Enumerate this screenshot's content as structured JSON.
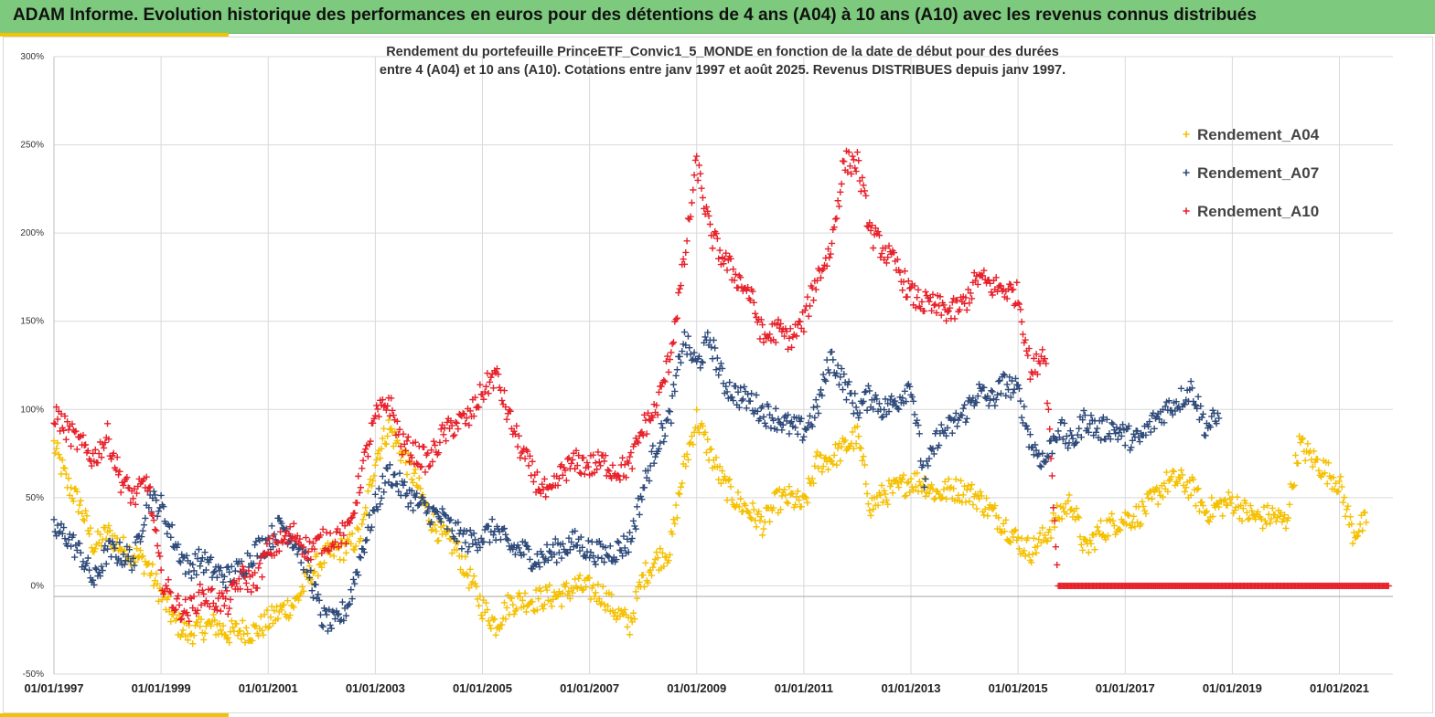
{
  "banner": {
    "title": "ADAM Informe. Evolution historique des performances en euros pour des détentions de 4 ans (A04) à 10 ans (A10) avec les revenus connus distribués",
    "color": "#7dc97d",
    "accent_color": "#f2c300"
  },
  "chart_data": {
    "type": "scatter",
    "subtitle_lines": [
      "Rendement du portefeuille PrinceETF_Convic1_5_MONDE  en fonction de la date de début pour des durées",
      "entre 4 (A04) et 10 ans (A10). Cotations entre janv 1997 et août 2025. Revenus DISTRIBUES depuis janv 1997."
    ],
    "xlabel": "",
    "ylabel": "",
    "x_ticks": [
      "01/01/1997",
      "01/01/1999",
      "01/01/2001",
      "01/01/2003",
      "01/01/2005",
      "01/01/2007",
      "01/01/2009",
      "01/01/2011",
      "01/01/2013",
      "01/01/2015",
      "01/01/2017",
      "01/01/2019",
      "01/01/2021"
    ],
    "y_ticks": [
      "-50%",
      "0%",
      "50%",
      "100%",
      "150%",
      "200%",
      "250%",
      "300%"
    ],
    "xlim": [
      "1997-01-01",
      "2021-12-31"
    ],
    "ylim": [
      -50,
      300
    ],
    "grid": true,
    "legend_position": "top-right",
    "marker": "+",
    "series": [
      {
        "name": "Rendement_A04",
        "color": "#f5c000",
        "points": [
          [
            "1997-01",
            80
          ],
          [
            "1997-04",
            58
          ],
          [
            "1997-07",
            45
          ],
          [
            "1997-10",
            22
          ],
          [
            "1998-01",
            30
          ],
          [
            "1998-04",
            22
          ],
          [
            "1998-07",
            18
          ],
          [
            "1998-10",
            12
          ],
          [
            "1999-01",
            -5
          ],
          [
            "1999-04",
            -20
          ],
          [
            "1999-07",
            -27
          ],
          [
            "1999-10",
            -24
          ],
          [
            "2000-01",
            -22
          ],
          [
            "2000-04",
            -27
          ],
          [
            "2000-07",
            -25
          ],
          [
            "2000-10",
            -26
          ],
          [
            "2001-01",
            -20
          ],
          [
            "2001-04",
            -14
          ],
          [
            "2001-07",
            -10
          ],
          [
            "2001-10",
            5
          ],
          [
            "2002-01",
            15
          ],
          [
            "2002-04",
            20
          ],
          [
            "2002-07",
            22
          ],
          [
            "2002-10",
            30
          ],
          [
            "2003-01",
            72
          ],
          [
            "2003-04",
            90
          ],
          [
            "2003-07",
            75
          ],
          [
            "2003-10",
            60
          ],
          [
            "2004-01",
            40
          ],
          [
            "2004-04",
            28
          ],
          [
            "2004-07",
            22
          ],
          [
            "2004-10",
            5
          ],
          [
            "2005-01",
            -12
          ],
          [
            "2005-04",
            -22
          ],
          [
            "2005-07",
            -10
          ],
          [
            "2005-10",
            -8
          ],
          [
            "2006-01",
            -8
          ],
          [
            "2006-04",
            -6
          ],
          [
            "2006-07",
            -5
          ],
          [
            "2006-10",
            0
          ],
          [
            "2007-01",
            -2
          ],
          [
            "2007-04",
            -5
          ],
          [
            "2007-07",
            -15
          ],
          [
            "2007-10",
            -22
          ],
          [
            "2008-01",
            5
          ],
          [
            "2008-04",
            15
          ],
          [
            "2008-07",
            20
          ],
          [
            "2008-10",
            65
          ],
          [
            "2009-01",
            95
          ],
          [
            "2009-04",
            75
          ],
          [
            "2009-07",
            58
          ],
          [
            "2009-10",
            48
          ],
          [
            "2010-01",
            42
          ],
          [
            "2010-04",
            35
          ],
          [
            "2010-07",
            48
          ],
          [
            "2010-10",
            50
          ],
          [
            "2011-01",
            45
          ],
          [
            "2011-04",
            70
          ],
          [
            "2011-07",
            72
          ],
          [
            "2011-10",
            78
          ],
          [
            "2012-01",
            85
          ],
          [
            "2012-04",
            45
          ],
          [
            "2012-07",
            52
          ],
          [
            "2012-10",
            55
          ],
          [
            "2013-01",
            60
          ],
          [
            "2013-04",
            58
          ],
          [
            "2013-07",
            52
          ],
          [
            "2013-10",
            55
          ],
          [
            "2014-01",
            54
          ],
          [
            "2014-04",
            50
          ],
          [
            "2014-07",
            42
          ],
          [
            "2014-10",
            35
          ],
          [
            "2015-01",
            25
          ],
          [
            "2015-04",
            20
          ],
          [
            "2015-07",
            28
          ],
          [
            "2015-10",
            40
          ],
          [
            "2016-01",
            48
          ],
          [
            "2016-04",
            20
          ],
          [
            "2016-07",
            30
          ],
          [
            "2016-10",
            35
          ],
          [
            "2017-01",
            38
          ],
          [
            "2017-04",
            40
          ],
          [
            "2017-07",
            48
          ],
          [
            "2017-10",
            58
          ],
          [
            "2018-01",
            60
          ],
          [
            "2018-04",
            55
          ],
          [
            "2018-07",
            42
          ],
          [
            "2018-10",
            45
          ],
          [
            "2019-01",
            48
          ],
          [
            "2019-04",
            42
          ],
          [
            "2019-07",
            38
          ],
          [
            "2019-10",
            40
          ],
          [
            "2020-01",
            36
          ],
          [
            "2020-04",
            80
          ],
          [
            "2020-07",
            72
          ],
          [
            "2020-10",
            65
          ],
          [
            "2021-01",
            58
          ],
          [
            "2021-04",
            30
          ],
          [
            "2021-07",
            36
          ]
        ]
      },
      {
        "name": "Rendement_A07",
        "color": "#2e4a7a",
        "points": [
          [
            "1997-01",
            32
          ],
          [
            "1997-04",
            28
          ],
          [
            "1997-07",
            18
          ],
          [
            "1997-10",
            2
          ],
          [
            "1998-01",
            20
          ],
          [
            "1998-04",
            18
          ],
          [
            "1998-07",
            15
          ],
          [
            "1998-10",
            50
          ],
          [
            "1999-01",
            45
          ],
          [
            "1999-04",
            25
          ],
          [
            "1999-07",
            10
          ],
          [
            "1999-10",
            15
          ],
          [
            "2000-01",
            8
          ],
          [
            "2000-04",
            5
          ],
          [
            "2000-07",
            10
          ],
          [
            "2000-10",
            20
          ],
          [
            "2001-01",
            25
          ],
          [
            "2001-04",
            35
          ],
          [
            "2001-07",
            25
          ],
          [
            "2001-10",
            10
          ],
          [
            "2002-01",
            -18
          ],
          [
            "2002-04",
            -22
          ],
          [
            "2002-07",
            -10
          ],
          [
            "2002-10",
            20
          ],
          [
            "2003-01",
            45
          ],
          [
            "2003-04",
            65
          ],
          [
            "2003-07",
            55
          ],
          [
            "2003-10",
            48
          ],
          [
            "2004-01",
            42
          ],
          [
            "2004-04",
            38
          ],
          [
            "2004-07",
            30
          ],
          [
            "2004-10",
            25
          ],
          [
            "2005-01",
            28
          ],
          [
            "2005-04",
            32
          ],
          [
            "2005-07",
            22
          ],
          [
            "2005-10",
            20
          ],
          [
            "2006-01",
            15
          ],
          [
            "2006-04",
            18
          ],
          [
            "2006-07",
            22
          ],
          [
            "2006-10",
            25
          ],
          [
            "2007-01",
            20
          ],
          [
            "2007-04",
            18
          ],
          [
            "2007-07",
            20
          ],
          [
            "2007-10",
            25
          ],
          [
            "2008-01",
            55
          ],
          [
            "2008-04",
            80
          ],
          [
            "2008-07",
            95
          ],
          [
            "2008-10",
            140
          ],
          [
            "2009-01",
            125
          ],
          [
            "2009-04",
            140
          ],
          [
            "2009-07",
            115
          ],
          [
            "2009-10",
            108
          ],
          [
            "2010-01",
            105
          ],
          [
            "2010-04",
            98
          ],
          [
            "2010-07",
            95
          ],
          [
            "2010-10",
            90
          ],
          [
            "2011-01",
            88
          ],
          [
            "2011-04",
            100
          ],
          [
            "2011-07",
            130
          ],
          [
            "2011-10",
            115
          ],
          [
            "2012-01",
            100
          ],
          [
            "2012-04",
            108
          ],
          [
            "2012-07",
            100
          ],
          [
            "2012-10",
            105
          ],
          [
            "2013-01",
            115
          ],
          [
            "2013-04",
            60
          ],
          [
            "2013-07",
            85
          ],
          [
            "2013-10",
            90
          ],
          [
            "2014-01",
            98
          ],
          [
            "2014-04",
            110
          ],
          [
            "2014-07",
            105
          ],
          [
            "2014-10",
            115
          ],
          [
            "2015-01",
            110
          ],
          [
            "2015-04",
            80
          ],
          [
            "2015-07",
            70
          ],
          [
            "2015-10",
            90
          ],
          [
            "2016-01",
            80
          ],
          [
            "2016-04",
            95
          ],
          [
            "2016-07",
            88
          ],
          [
            "2016-10",
            90
          ],
          [
            "2017-01",
            85
          ],
          [
            "2017-04",
            82
          ],
          [
            "2017-07",
            92
          ],
          [
            "2017-10",
            100
          ],
          [
            "2018-01",
            105
          ],
          [
            "2018-04",
            112
          ],
          [
            "2018-07",
            90
          ],
          [
            "2018-10",
            95
          ]
        ]
      },
      {
        "name": "Rendement_A10",
        "color": "#e8202a",
        "points": [
          [
            "1997-01",
            98
          ],
          [
            "1997-04",
            88
          ],
          [
            "1997-07",
            80
          ],
          [
            "1997-10",
            72
          ],
          [
            "1998-01",
            85
          ],
          [
            "1998-04",
            60
          ],
          [
            "1998-07",
            50
          ],
          [
            "1998-10",
            60
          ],
          [
            "1999-01",
            5
          ],
          [
            "1999-04",
            -10
          ],
          [
            "1999-07",
            -15
          ],
          [
            "1999-10",
            -5
          ],
          [
            "2000-01",
            -8
          ],
          [
            "2000-04",
            -10
          ],
          [
            "2000-07",
            5
          ],
          [
            "2000-10",
            2
          ],
          [
            "2001-01",
            20
          ],
          [
            "2001-04",
            25
          ],
          [
            "2001-07",
            30
          ],
          [
            "2001-10",
            20
          ],
          [
            "2002-01",
            25
          ],
          [
            "2002-04",
            28
          ],
          [
            "2002-07",
            30
          ],
          [
            "2002-10",
            65
          ],
          [
            "2003-01",
            95
          ],
          [
            "2003-04",
            105
          ],
          [
            "2003-07",
            80
          ],
          [
            "2003-10",
            75
          ],
          [
            "2004-01",
            70
          ],
          [
            "2004-04",
            85
          ],
          [
            "2004-07",
            92
          ],
          [
            "2004-10",
            95
          ],
          [
            "2005-01",
            110
          ],
          [
            "2005-04",
            120
          ],
          [
            "2005-07",
            95
          ],
          [
            "2005-10",
            75
          ],
          [
            "2006-01",
            60
          ],
          [
            "2006-04",
            50
          ],
          [
            "2006-07",
            65
          ],
          [
            "2006-10",
            70
          ],
          [
            "2007-01",
            68
          ],
          [
            "2007-04",
            70
          ],
          [
            "2007-07",
            65
          ],
          [
            "2007-10",
            68
          ],
          [
            "2008-01",
            90
          ],
          [
            "2008-04",
            100
          ],
          [
            "2008-07",
            130
          ],
          [
            "2008-10",
            180
          ],
          [
            "2009-01",
            240
          ],
          [
            "2009-04",
            200
          ],
          [
            "2009-07",
            185
          ],
          [
            "2009-10",
            175
          ],
          [
            "2010-01",
            165
          ],
          [
            "2010-04",
            140
          ],
          [
            "2010-07",
            145
          ],
          [
            "2010-10",
            140
          ],
          [
            "2011-01",
            150
          ],
          [
            "2011-04",
            175
          ],
          [
            "2011-07",
            190
          ],
          [
            "2011-10",
            240
          ],
          [
            "2012-01",
            240
          ],
          [
            "2012-04",
            200
          ],
          [
            "2012-07",
            190
          ],
          [
            "2012-10",
            180
          ],
          [
            "2013-01",
            165
          ],
          [
            "2013-04",
            160
          ],
          [
            "2013-07",
            158
          ],
          [
            "2013-10",
            155
          ],
          [
            "2014-01",
            160
          ],
          [
            "2014-04",
            175
          ],
          [
            "2014-07",
            170
          ],
          [
            "2014-10",
            168
          ],
          [
            "2015-01",
            165
          ],
          [
            "2015-04",
            120
          ],
          [
            "2015-07",
            135
          ],
          [
            "2015-10",
            0
          ],
          [
            "2016-01",
            0
          ],
          [
            "2016-07",
            0
          ],
          [
            "2017-01",
            0
          ],
          [
            "2017-07",
            0
          ],
          [
            "2018-01",
            0
          ],
          [
            "2018-07",
            0
          ],
          [
            "2019-01",
            0
          ],
          [
            "2019-07",
            0
          ],
          [
            "2020-01",
            0
          ],
          [
            "2020-07",
            0
          ],
          [
            "2021-01",
            0
          ],
          [
            "2021-07",
            0
          ],
          [
            "2021-12",
            0
          ]
        ]
      }
    ]
  }
}
